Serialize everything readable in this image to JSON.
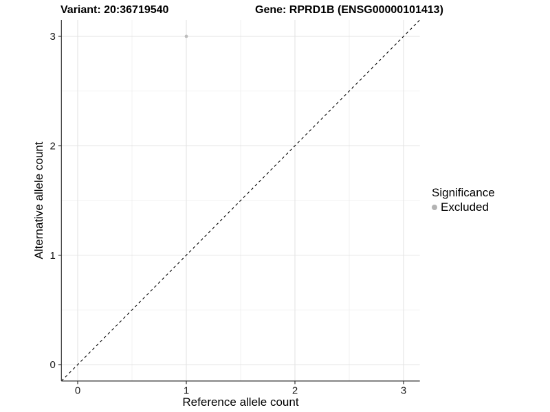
{
  "chart_data": {
    "type": "scatter",
    "title_left": "Variant: 20:36719540",
    "title_right": "Gene: RPRD1B (ENSG00000101413)",
    "xlabel": "Reference allele count",
    "ylabel": "Alternative allele count",
    "xlim": [
      -0.15,
      3.15
    ],
    "ylim": [
      -0.15,
      3.15
    ],
    "x_ticks": [
      0,
      1,
      2,
      3
    ],
    "y_ticks": [
      0,
      1,
      2,
      3
    ],
    "x_minor_ticks": [
      0.5,
      1.5,
      2.5
    ],
    "y_minor_ticks": [
      0.5,
      1.5,
      2.5
    ],
    "grid": "major+minor",
    "series": [
      {
        "name": "Excluded",
        "color": "#bdbdbd",
        "marker": "circle",
        "points": [
          {
            "x": 1,
            "y": 3
          }
        ]
      }
    ],
    "reference_line": {
      "kind": "identity",
      "slope": 1,
      "intercept": 0,
      "style": "dashed",
      "color": "#000000"
    },
    "legend": {
      "title": "Significance",
      "position": "right",
      "entries": [
        {
          "label": "Excluded",
          "color": "#b3b3b3",
          "marker": "circle"
        }
      ]
    },
    "colors": {
      "background": "#ffffff",
      "axis_line": "#333333",
      "tick_mark": "#333333",
      "tick_label": "#1a1a1a",
      "grid_major": "#e4e4e4",
      "grid_minor": "#efefef"
    }
  }
}
